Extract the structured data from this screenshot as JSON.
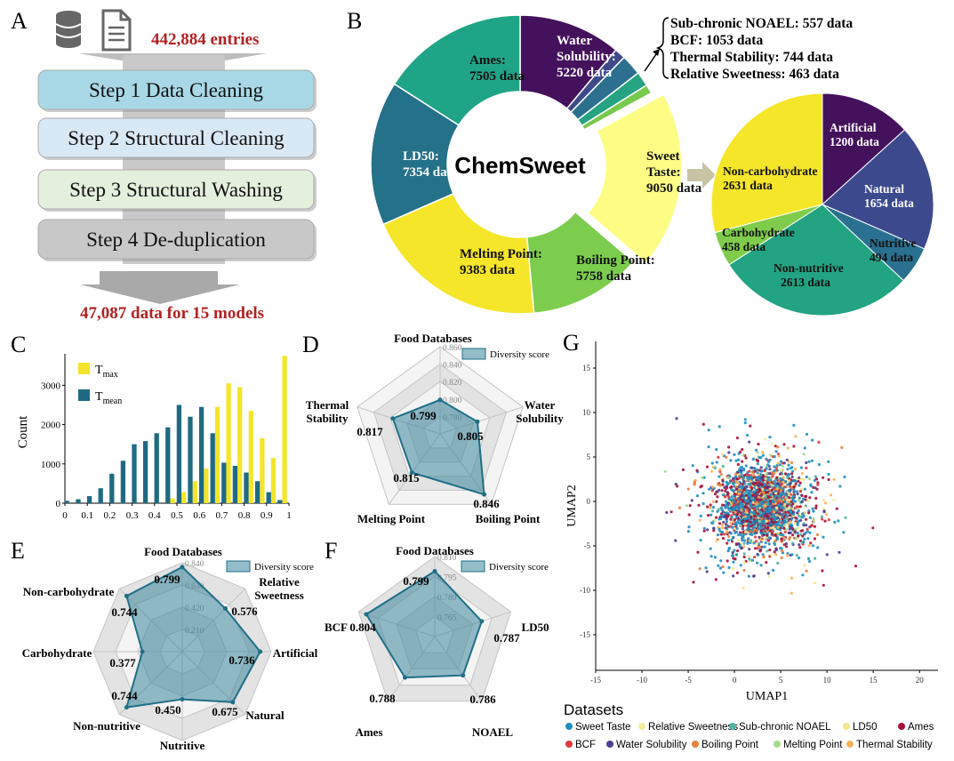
{
  "panels": {
    "A": {
      "letter": "A",
      "icons": [
        "database-icon",
        "document-icon"
      ],
      "entries": "442,884 entries",
      "steps": [
        "Step 1 Data Cleaning",
        "Step 2 Structural Cleaning",
        "Step 3 Structural Washing",
        "Step 4 De-duplication"
      ],
      "step_colors": [
        "#a8d8e6",
        "#d9e8f5",
        "#e3f0dc",
        "#c8c8c8"
      ],
      "result": "47,087 data for 15 models",
      "accent": "#b22222"
    },
    "B": {
      "letter": "B",
      "center_label": "ChemSweet",
      "small_note": [
        "Sub-chronic NOAEL: 557 data",
        "BCF: 1053 data",
        "Thermal Stability: 744 data",
        "Relative Sweetness: 463 data"
      ]
    },
    "C": {
      "letter": "C"
    },
    "D": {
      "letter": "D"
    },
    "E": {
      "letter": "E"
    },
    "F": {
      "letter": "F"
    },
    "G": {
      "letter": "G"
    }
  },
  "chart_data": [
    {
      "panel": "B-donut",
      "type": "pie",
      "center_label": "ChemSweet",
      "slices": [
        {
          "label": "Water Solubility:",
          "value_text": "5220 data",
          "value": 5220,
          "color": "#44125c"
        },
        {
          "label": "",
          "value": 557,
          "color": "#3e4a8a"
        },
        {
          "label": "",
          "value": 1053,
          "color": "#2c6f8e"
        },
        {
          "label": "",
          "value": 744,
          "color": "#26a383"
        },
        {
          "label": "",
          "value": 463,
          "color": "#78c94e"
        },
        {
          "label": "Sweet Taste:",
          "value_text": "9050 data",
          "value": 9050,
          "color": "#fdfd85",
          "exploded": true
        },
        {
          "label": "Boiling Point:",
          "value_text": "5758 data",
          "value": 5758,
          "color": "#7ccd4e"
        },
        {
          "label": "Melting Point:",
          "value_text": "9383 data",
          "value": 9383,
          "color": "#f5e62a"
        },
        {
          "label": "LD50:",
          "value_text": "7354 data",
          "value": 7354,
          "color": "#24718a"
        },
        {
          "label": "Ames:",
          "value_text": "7505 data",
          "value": 7505,
          "color": "#20a487"
        }
      ]
    },
    {
      "panel": "B-pie",
      "type": "pie",
      "slices": [
        {
          "label": "Artificial",
          "value_text": "1200 data",
          "value": 1200,
          "color": "#44125c"
        },
        {
          "label": "Natural",
          "value_text": "1654 data",
          "value": 1654,
          "color": "#3c4a8d"
        },
        {
          "label": "Nutritive",
          "value_text": "494 data",
          "value": 494,
          "color": "#2a7090"
        },
        {
          "label": "Non-nutritive",
          "value_text": "2613 data",
          "value": 2613,
          "color": "#22a382"
        },
        {
          "label": "Carbohydrate",
          "value_text": "458 data",
          "value": 458,
          "color": "#7fcc4c"
        },
        {
          "label": "Non-carbohydrate",
          "value_text": "2631 data",
          "value": 2631,
          "color": "#f5e62a"
        }
      ]
    },
    {
      "panel": "C",
      "type": "bar",
      "ylabel": "Count",
      "xlim": [
        0,
        1
      ],
      "ylim": [
        0,
        3800
      ],
      "xticks": [
        "0",
        "0.1",
        "0.2",
        "0.3",
        "0.4",
        "0.5",
        "0.6",
        "0.7",
        "0.8",
        "0.9",
        "1"
      ],
      "yticks": [
        "0",
        "1000",
        "2000",
        "3000"
      ],
      "legend_placement": "top-left",
      "series": [
        {
          "name": "Tmax",
          "name_main": "T",
          "name_sub": "max",
          "color": "#f4e52a",
          "x": [
            0.47,
            0.52,
            0.57,
            0.62,
            0.67,
            0.72,
            0.77,
            0.82,
            0.87,
            0.92,
            0.97
          ],
          "values": [
            120,
            280,
            560,
            880,
            2450,
            3050,
            2950,
            2350,
            1650,
            1150,
            3750
          ]
        },
        {
          "name": "Tmean",
          "name_main": "T",
          "name_sub": "mean",
          "color": "#1f6a82",
          "x": [
            0.02,
            0.07,
            0.12,
            0.17,
            0.22,
            0.27,
            0.32,
            0.37,
            0.42,
            0.47,
            0.52,
            0.57,
            0.62,
            0.67,
            0.72,
            0.77,
            0.82,
            0.87,
            0.92,
            0.97
          ],
          "values": [
            60,
            100,
            180,
            380,
            750,
            1080,
            1500,
            1580,
            1780,
            1930,
            2500,
            2200,
            2450,
            1780,
            1030,
            950,
            780,
            560,
            280,
            80
          ]
        }
      ]
    },
    {
      "panel": "D",
      "type": "radar",
      "legend": "Diversity score",
      "axes": [
        "Food Databases",
        "Water Solubility",
        "Boiling Point",
        "Melting Point",
        "Thermal Stability"
      ],
      "values": [
        0.799,
        0.805,
        0.846,
        0.815,
        0.817
      ],
      "value_labels": [
        "0.799",
        "0.805",
        "0.846",
        "0.815",
        "0.817"
      ],
      "rmin": 0.76,
      "rmax": 0.86,
      "ring_labels": [
        "0.780",
        "0.800",
        "0.820",
        "0.840",
        "0.860"
      ]
    },
    {
      "panel": "E",
      "type": "radar",
      "legend": "Diversity score",
      "axes": [
        "Food Databases",
        "Relative Sweetness",
        "Artificial",
        "Natural",
        "Nutritive",
        "Non-nutritive",
        "Carbohydrate",
        "Non-carbohydrate"
      ],
      "values": [
        0.799,
        0.576,
        0.736,
        0.675,
        0.45,
        0.744,
        0.377,
        0.744
      ],
      "value_labels": [
        "0.799",
        "0.576",
        "0.736",
        "0.675",
        "0.450",
        "0.744",
        "0.377",
        "0.744"
      ],
      "rmin": 0,
      "rmax": 0.84,
      "ring_labels": [
        "0.210",
        "0.420",
        "0.630",
        "0.840"
      ]
    },
    {
      "panel": "F",
      "type": "radar",
      "legend": "Diversity score",
      "axes": [
        "Food Databases",
        "LD50",
        "NOAEL",
        "Ames",
        "BCF"
      ],
      "values": [
        0.799,
        0.787,
        0.786,
        0.788,
        0.804
      ],
      "value_labels": [
        "0.799",
        "0.787",
        "0.786",
        "0.788",
        "0.804"
      ],
      "rmin": 0.75,
      "rmax": 0.81,
      "ring_labels": [
        "0.765",
        "0.780",
        "0.795",
        "0.810"
      ]
    },
    {
      "panel": "G",
      "type": "scatter",
      "xlabel": "UMAP1",
      "ylabel": "UMAP2",
      "xlim": [
        -15,
        22
      ],
      "ylim": [
        -19,
        18
      ],
      "xticks": [
        "-15",
        "-10",
        "-5",
        "0",
        "5",
        "10",
        "15",
        "20"
      ],
      "yticks": [
        "-15",
        "-10",
        "-5",
        "0",
        "5",
        "10",
        "15"
      ],
      "legend_title": "Datasets",
      "legend_placement": "bottom",
      "series": [
        {
          "name": "Sweet Taste",
          "color": "#1f8fbf"
        },
        {
          "name": "Relative Sweetness",
          "color": "#f3f09b"
        },
        {
          "name": "Sub-chronic NOAEL",
          "color": "#4fb3a6"
        },
        {
          "name": "LD50",
          "color": "#f4e68e"
        },
        {
          "name": "Ames",
          "color": "#a8123a"
        },
        {
          "name": "BCF",
          "color": "#e03a3e"
        },
        {
          "name": "Water Solubility",
          "color": "#4b3f8f"
        },
        {
          "name": "Boiling Point",
          "color": "#e8813a"
        },
        {
          "name": "Melting Point",
          "color": "#a6d98c"
        },
        {
          "name": "Thermal Stability",
          "color": "#f6b35b"
        }
      ]
    }
  ]
}
